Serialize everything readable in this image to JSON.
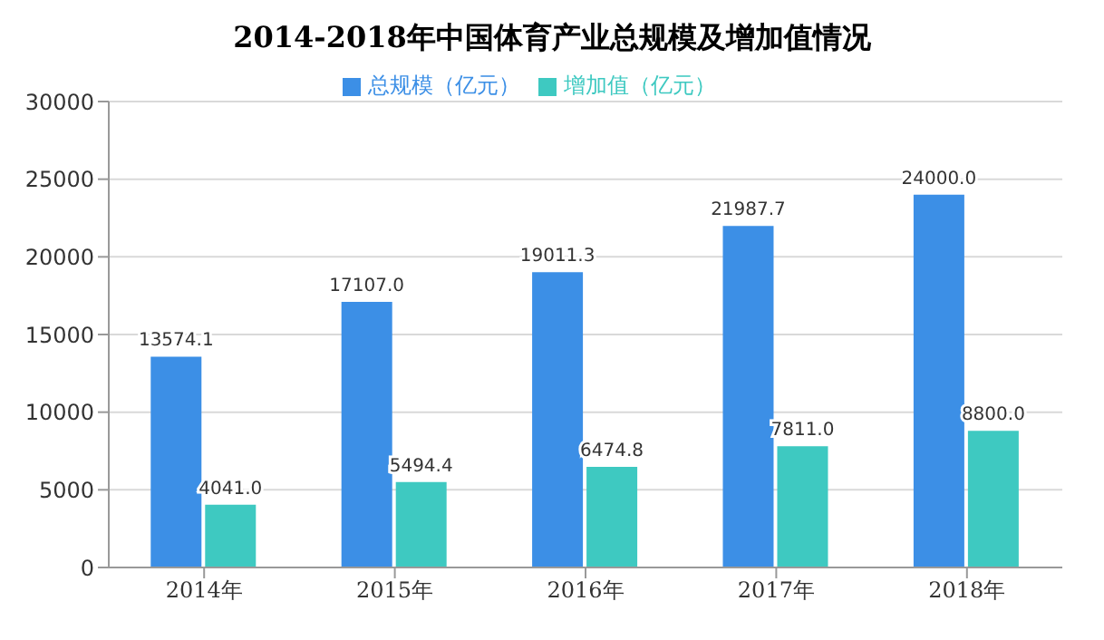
{
  "chart_data": {
    "type": "bar",
    "title": "2014-2018年中国体育产业总规模及增加值情况",
    "categories": [
      "2014年",
      "2015年",
      "2016年",
      "2017年",
      "2018年"
    ],
    "series": [
      {
        "name": "总规模（亿元）",
        "color": "#3c8fe6",
        "values": [
          13574.1,
          17107.0,
          19011.3,
          21987.7,
          24000.0
        ],
        "value_labels": [
          "13574.1",
          "17107.0",
          "19011.3",
          "21987.7",
          "24000.0"
        ]
      },
      {
        "name": "增加值（亿元）",
        "color": "#3ec9c1",
        "values": [
          4041.0,
          5494.4,
          6474.8,
          7811.0,
          8800.0
        ],
        "value_labels": [
          "4041.0",
          "5494.4",
          "6474.8",
          "7811.0",
          "8800.0"
        ]
      }
    ],
    "ylim": [
      0,
      30000
    ],
    "yticks": [
      0,
      5000,
      10000,
      15000,
      20000,
      25000,
      30000
    ],
    "grid": "y",
    "legend": "top"
  }
}
